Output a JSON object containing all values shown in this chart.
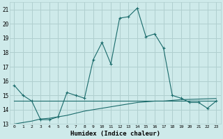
{
  "xlabel": "Humidex (Indice chaleur)",
  "xlim": [
    -0.5,
    23.5
  ],
  "ylim": [
    13,
    21.5
  ],
  "yticks": [
    13,
    14,
    15,
    16,
    17,
    18,
    19,
    20,
    21
  ],
  "xticks": [
    0,
    1,
    2,
    3,
    4,
    5,
    6,
    7,
    8,
    9,
    10,
    11,
    12,
    13,
    14,
    15,
    16,
    17,
    18,
    19,
    20,
    21,
    22,
    23
  ],
  "bg_color": "#ceeaea",
  "grid_color": "#b0cfcf",
  "line_color": "#1a6b6b",
  "series1": [
    15.7,
    15.0,
    14.6,
    13.3,
    13.3,
    13.5,
    15.2,
    15.0,
    14.8,
    17.5,
    18.7,
    17.2,
    20.4,
    20.5,
    21.1,
    19.1,
    19.3,
    18.3,
    15.0,
    14.8,
    14.5,
    14.5,
    14.1,
    14.6
  ],
  "series2": [
    14.6,
    14.6,
    14.6,
    14.6,
    14.6,
    14.6,
    14.6,
    14.6,
    14.6,
    14.6,
    14.6,
    14.6,
    14.6,
    14.6,
    14.6,
    14.6,
    14.6,
    14.6,
    14.6,
    14.6,
    14.6,
    14.6,
    14.6,
    14.6
  ],
  "series3": [
    13.0,
    13.1,
    13.2,
    13.35,
    13.4,
    13.5,
    13.6,
    13.75,
    13.9,
    14.0,
    14.1,
    14.2,
    14.3,
    14.4,
    14.5,
    14.55,
    14.6,
    14.6,
    14.65,
    14.7,
    14.72,
    14.74,
    14.76,
    14.78
  ]
}
